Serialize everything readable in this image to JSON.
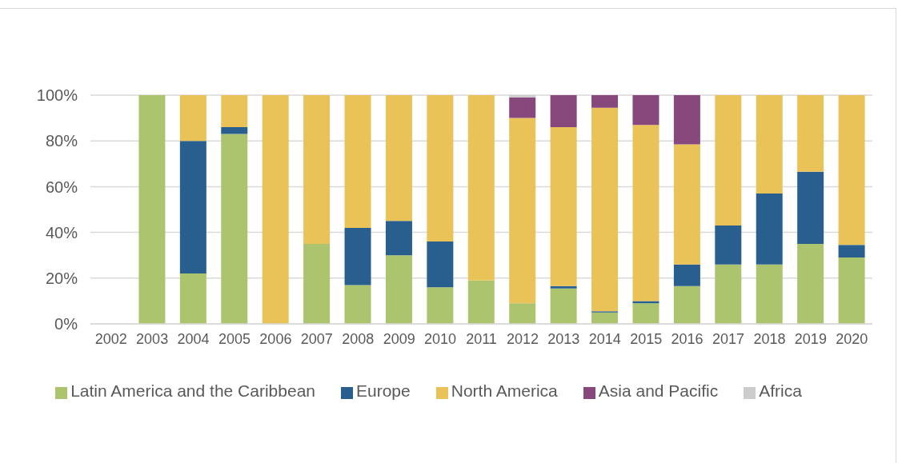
{
  "chart_data": {
    "type": "bar",
    "stacked": true,
    "categories": [
      "2002",
      "2003",
      "2004",
      "2005",
      "2006",
      "2007",
      "2008",
      "2009",
      "2010",
      "2011",
      "2012",
      "2013",
      "2014",
      "2015",
      "2016",
      "2017",
      "2018",
      "2019",
      "2020"
    ],
    "series": [
      {
        "name": "Latin America and the Caribbean",
        "color": "#abc46d",
        "values": [
          null,
          100,
          22,
          83,
          null,
          35,
          17,
          30,
          16,
          19,
          9,
          15.5,
          5,
          9,
          16.5,
          26,
          26,
          35,
          29
        ]
      },
      {
        "name": "Europe",
        "color": "#285f8f",
        "values": [
          null,
          null,
          58,
          3,
          null,
          null,
          25,
          15,
          20,
          null,
          null,
          1,
          0.5,
          1,
          9.5,
          17,
          31,
          31.5,
          5.5
        ]
      },
      {
        "name": "North America",
        "color": "#e9c258",
        "values": [
          null,
          null,
          20,
          14,
          100,
          65,
          58,
          55,
          64,
          81,
          81,
          69.5,
          89,
          77,
          52.5,
          57,
          43,
          33.5,
          65.5
        ]
      },
      {
        "name": "Asia and Pacific",
        "color": "#87497b",
        "values": [
          null,
          null,
          null,
          null,
          null,
          null,
          null,
          null,
          null,
          null,
          9,
          14,
          5.5,
          13,
          21.5,
          null,
          null,
          null,
          null
        ]
      },
      {
        "name": "Africa",
        "color": "#cccccc",
        "values": [
          null,
          null,
          null,
          null,
          null,
          null,
          null,
          null,
          null,
          null,
          1,
          null,
          null,
          null,
          null,
          null,
          null,
          null,
          null
        ]
      }
    ],
    "ylim": [
      0,
      100
    ],
    "yticks": [
      {
        "value": 0,
        "label": "0%"
      },
      {
        "value": 20,
        "label": "20%"
      },
      {
        "value": 40,
        "label": "40%"
      },
      {
        "value": 60,
        "label": "60%"
      },
      {
        "value": 80,
        "label": "80%"
      },
      {
        "value": 100,
        "label": "100%"
      }
    ],
    "grid": "y",
    "legend": "bottom"
  }
}
